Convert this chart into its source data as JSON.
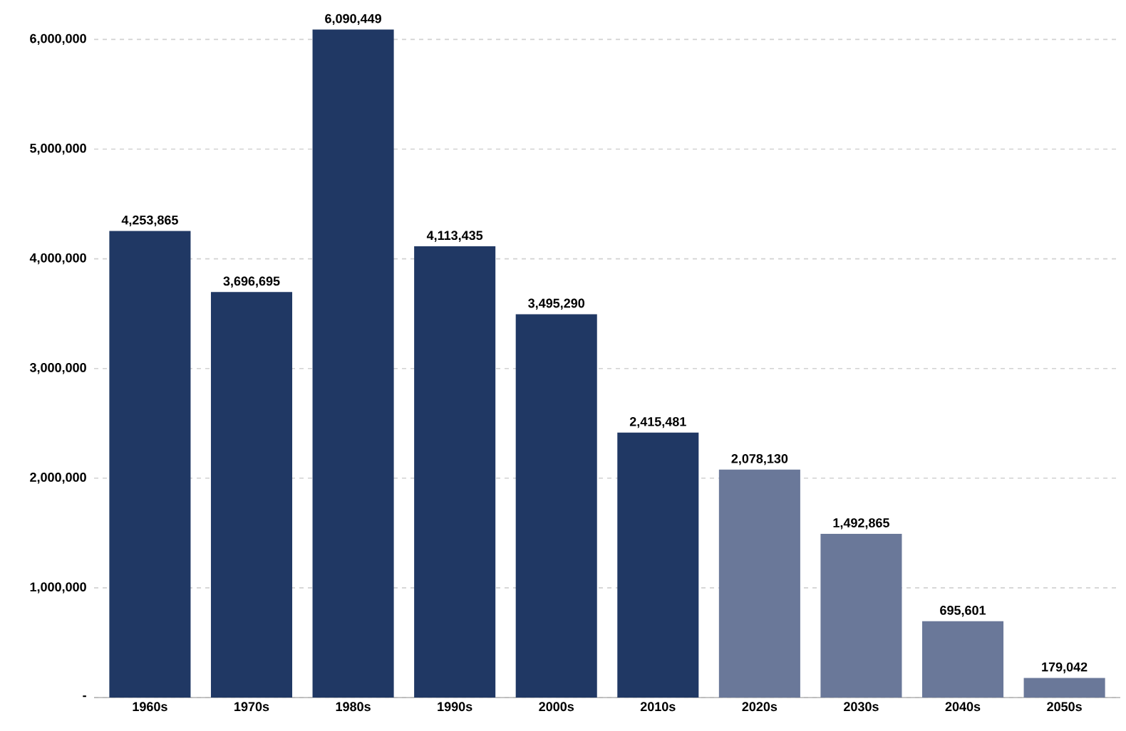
{
  "chart_data": {
    "type": "bar",
    "categories": [
      "1960s",
      "1970s",
      "1980s",
      "1990s",
      "2000s",
      "2010s",
      "2020s",
      "2030s",
      "2040s",
      "2050s"
    ],
    "values": [
      4253865,
      3696695,
      6090449,
      4113435,
      3495290,
      2415481,
      2078130,
      1492865,
      695601,
      179042
    ],
    "value_labels": [
      "4,253,865",
      "3,696,695",
      "6,090,449",
      "4,113,435",
      "3,495,290",
      "2,415,481",
      "2,078,130",
      "1,492,865",
      "695,601",
      "179,042"
    ],
    "colors": [
      "#203864",
      "#203864",
      "#203864",
      "#203864",
      "#203864",
      "#203864",
      "#6a7899",
      "#6a7899",
      "#6a7899",
      "#6a7899"
    ],
    "ylim": [
      0,
      6100000
    ],
    "yticks": [
      {
        "value": 0,
        "label": "-"
      },
      {
        "value": 1000000,
        "label": "1,000,000"
      },
      {
        "value": 2000000,
        "label": "2,000,000"
      },
      {
        "value": 3000000,
        "label": "3,000,000"
      },
      {
        "value": 4000000,
        "label": "4,000,000"
      },
      {
        "value": 5000000,
        "label": "5,000,000"
      },
      {
        "value": 6000000,
        "label": "6,000,000"
      }
    ],
    "grid": "y"
  }
}
